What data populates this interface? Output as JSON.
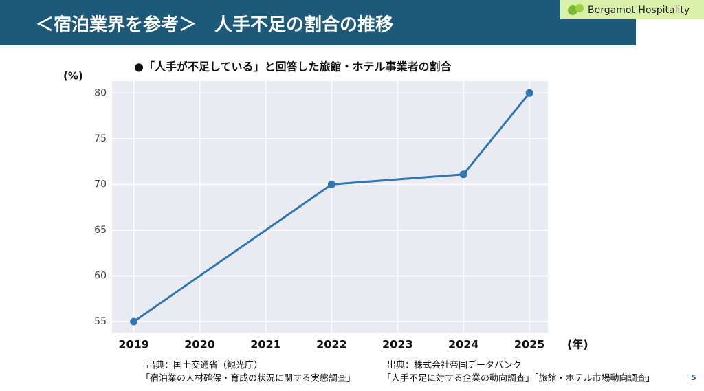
{
  "header": {
    "title": "＜宿泊業界を参考＞　人手不足の割合の推移",
    "logo": "Bergamot Hospitality"
  },
  "chart_data": {
    "type": "line",
    "title": "●「人手が不足している」と回答した旅館・ホテル事業者の割合",
    "ylabel": "(%)",
    "xlabel": "(年)",
    "x": [
      2019,
      2022,
      2024,
      2025
    ],
    "values": [
      55,
      70,
      71.1,
      80
    ],
    "color": "#2f78b5",
    "xlim": [
      2018.67,
      2025.28
    ],
    "ylim": [
      53.8,
      81.3
    ],
    "xticks": [
      2019,
      2020,
      2021,
      2022,
      2023,
      2024,
      2025
    ],
    "yticks": [
      55,
      60,
      65,
      70,
      75,
      80
    ],
    "grid": true
  },
  "sources": [
    {
      "line1": "出典：国土交通省（観光庁）",
      "line2": "「宿泊業の人材確保・育成の状況に関する実態調査」"
    },
    {
      "line1": "出典：株式会社帝国データバンク",
      "line2": "「人手不足に対する企業の動向調査」「旅館・ホテル市場動向調査」"
    }
  ],
  "page_number": "5"
}
